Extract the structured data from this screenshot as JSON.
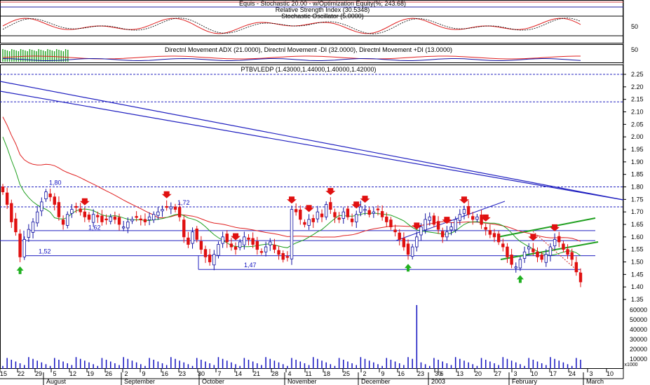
{
  "chart_data": {
    "type": "candlestick",
    "panels": {
      "stochastic": {
        "title_lines": [
          "Equis - Stochastic 20.00 - w/Optimization Equity(%; 243.68)",
          "Relative Strength Index (30.5348)",
          "Stochastic Oscillator (5.0000)"
        ],
        "axis_label": "50"
      },
      "dmi": {
        "title": "Directnl Movement ADX (21.0000), Directnl Movement -DI (32.0000), Directnl Movement +DI (13.0000)",
        "axis_label": "50"
      },
      "price": {
        "title": "PTBVLEDP (1.43000,1.44000,1.40000,1.42000)",
        "y_ticks": [
          "2.25",
          "2.20",
          "2.15",
          "2.10",
          "2.05",
          "2.00",
          "1.95",
          "1.90",
          "1.85",
          "1.80",
          "1.75",
          "1.70",
          "1.65",
          "1.60",
          "1.55",
          "1.50",
          "1.45",
          "1.40",
          "1.35"
        ],
        "level_labels": [
          "1,80",
          "1,72",
          "1,62",
          "1,52",
          "1,47"
        ]
      },
      "volume": {
        "y_ticks": [
          "60000",
          "50000",
          "40000",
          "30000",
          "20000",
          "10000"
        ],
        "unit": "x1000"
      }
    },
    "x_ticks": [
      "15",
      "22",
      "29",
      "5",
      "12",
      "19",
      "26",
      "2",
      "9",
      "16",
      "23",
      "30",
      "7",
      "14",
      "21",
      "28",
      "4",
      "11",
      "18",
      "25",
      "2",
      "9",
      "16",
      "23",
      "30",
      "6",
      "13",
      "20",
      "27",
      "3",
      "10",
      "17",
      "24",
      "3",
      "10"
    ],
    "x_months": [
      "August",
      "September",
      "October",
      "November",
      "December",
      "2003",
      "February",
      "March"
    ],
    "close_series": [
      1.78,
      1.73,
      1.66,
      1.62,
      1.52,
      1.59,
      1.63,
      1.66,
      1.7,
      1.74,
      1.78,
      1.76,
      1.73,
      1.68,
      1.65,
      1.69,
      1.71,
      1.72,
      1.7,
      1.68,
      1.67,
      1.69,
      1.68,
      1.66,
      1.67,
      1.68,
      1.67,
      1.65,
      1.64,
      1.66,
      1.67,
      1.68,
      1.67,
      1.66,
      1.68,
      1.69,
      1.7,
      1.71,
      1.72,
      1.72,
      1.71,
      1.68,
      1.6,
      1.57,
      1.62,
      1.59,
      1.55,
      1.52,
      1.5,
      1.53,
      1.57,
      1.6,
      1.58,
      1.56,
      1.55,
      1.58,
      1.6,
      1.59,
      1.57,
      1.55,
      1.54,
      1.56,
      1.58,
      1.55,
      1.53,
      1.51,
      1.52,
      1.71,
      1.7,
      1.67,
      1.65,
      1.67,
      1.66,
      1.7,
      1.68,
      1.73,
      1.71,
      1.68,
      1.67,
      1.7,
      1.68,
      1.66,
      1.69,
      1.72,
      1.71,
      1.69,
      1.7,
      1.71,
      1.68,
      1.66,
      1.64,
      1.62,
      1.59,
      1.56,
      1.53,
      1.56,
      1.6,
      1.64,
      1.67,
      1.68,
      1.65,
      1.63,
      1.6,
      1.62,
      1.64,
      1.67,
      1.69,
      1.71,
      1.69,
      1.67,
      1.68,
      1.65,
      1.63,
      1.61,
      1.6,
      1.58,
      1.56,
      1.52,
      1.49,
      1.48,
      1.51,
      1.54,
      1.56,
      1.54,
      1.52,
      1.51,
      1.53,
      1.56,
      1.59,
      1.58,
      1.55,
      1.53,
      1.51,
      1.46,
      1.42
    ],
    "volume_spike_value": 65000
  }
}
